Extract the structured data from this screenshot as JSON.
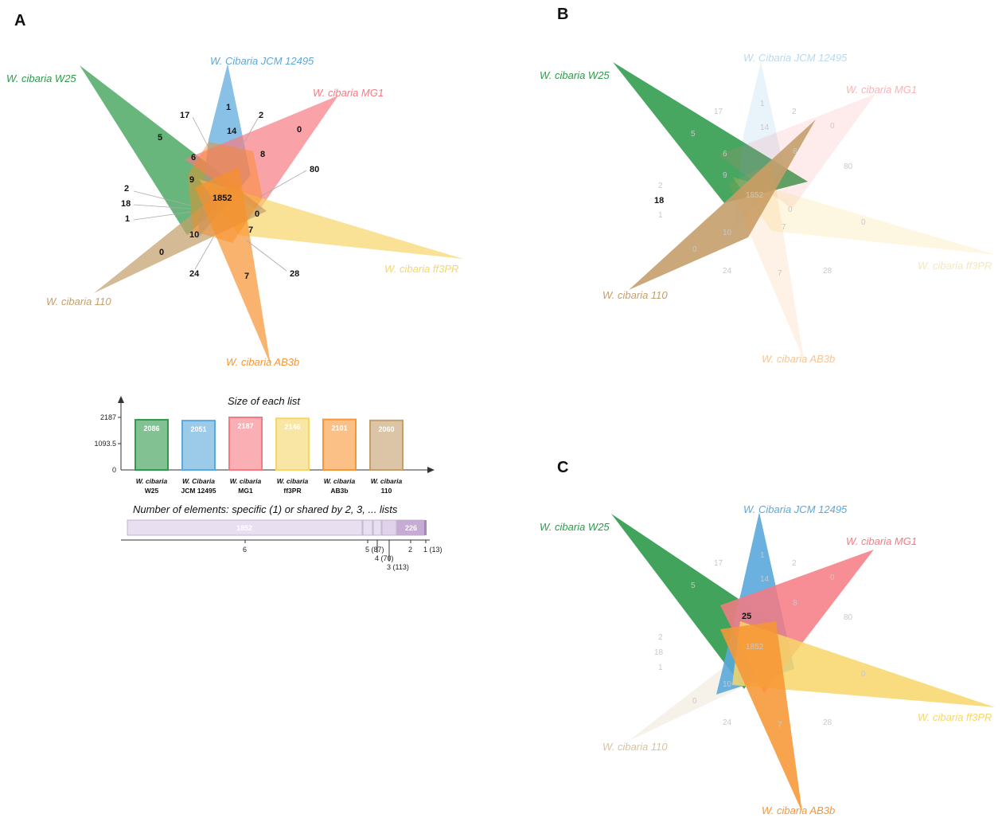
{
  "panels": {
    "a": "A",
    "b": "B",
    "c": "C"
  },
  "colors": {
    "w25": "#2e9a4a",
    "jcm": "#5aa8dc",
    "mg1": "#f77a82",
    "ff3pr": "#f7d668",
    "ab3b": "#f79636",
    "w110": "#c49f6c"
  },
  "species": {
    "w25": "W. cibaria W25",
    "jcm": "W. Cibaria JCM 12495",
    "mg1": "W. cibaria MG1",
    "ff3pr": "W. cibaria ff3PR",
    "ab3b": "W. cibaria AB3b",
    "w110": "W. cibaria 110"
  },
  "venn_numbers": {
    "n17": "17",
    "n1": "1",
    "n2": "2",
    "n5": "5",
    "n14": "14",
    "n0a": "0",
    "n6": "6",
    "n8": "8",
    "n80": "80",
    "n9": "9",
    "n2b": "2",
    "n18": "18",
    "n1852": "1852",
    "n1b": "1",
    "n0b": "0",
    "n10": "10",
    "n7a": "7",
    "n0c": "0",
    "n24": "24",
    "n7b": "7",
    "n28": "28"
  },
  "panel_b_highlight": "18",
  "panel_c_highlight": "25",
  "list_chart": {
    "title": "Size of each list",
    "ytick_top": "2187",
    "ytick_mid": "1093.5",
    "ytick_zero": "0",
    "bars": [
      {
        "name1": "W. cibaria",
        "name2": "W25",
        "value": 2086,
        "label": "2086"
      },
      {
        "name1": "W. Cibaria",
        "name2": "JCM 12495",
        "value": 2051,
        "label": "2051"
      },
      {
        "name1": "W. cibaria",
        "name2": "MG1",
        "value": 2187,
        "label": "2187"
      },
      {
        "name1": "W. cibaria",
        "name2": "ff3PR",
        "value": 2146,
        "label": "2146"
      },
      {
        "name1": "W. cibaria",
        "name2": "AB3b",
        "value": 2101,
        "label": "2101"
      },
      {
        "name1": "W. cibaria",
        "name2": "110",
        "value": 2060,
        "label": "2060"
      }
    ]
  },
  "shared_chart": {
    "title": "Number of elements: specific (1) or shared by 2, 3, ... lists",
    "seg_1852": "1852",
    "seg_226": "226",
    "tick6": "6",
    "tick5": "5 (87)",
    "tick4": "4 (70)",
    "tick3": "3 (113)",
    "tick2": "2",
    "tick1": "1 (13)"
  },
  "chart_data": {
    "type": "bar",
    "title": "Size of each list",
    "categories": [
      "W. cibaria W25",
      "W. Cibaria JCM 12495",
      "W. cibaria MG1",
      "W. cibaria ff3PR",
      "W. cibaria AB3b",
      "W. cibaria 110"
    ],
    "values": [
      2086,
      2051,
      2187,
      2146,
      2101,
      2060
    ],
    "ylim": [
      0,
      2187
    ]
  }
}
